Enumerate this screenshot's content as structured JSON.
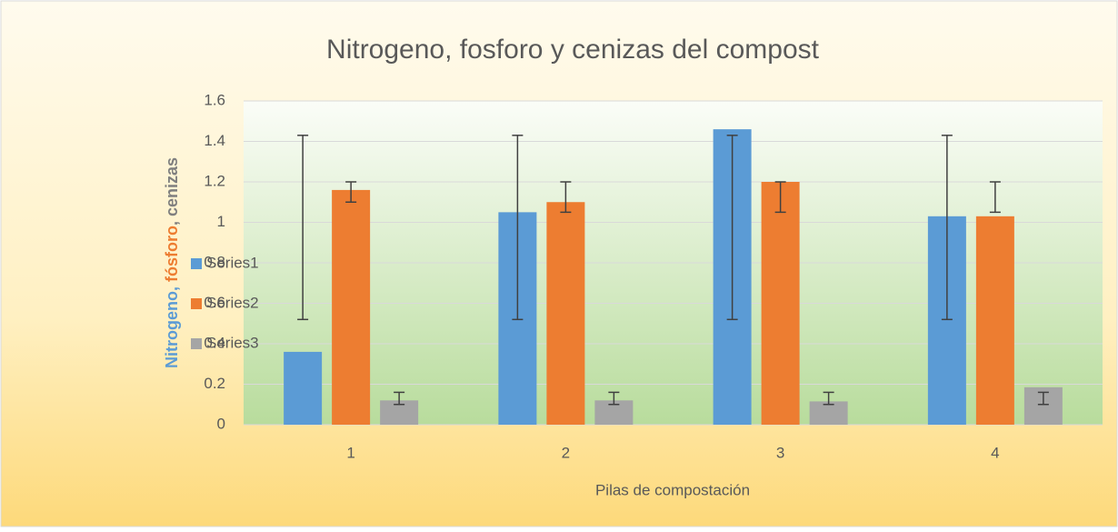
{
  "chart_data": {
    "type": "bar",
    "title": "Nitrogeno, fosforo y cenizas del compost",
    "xlabel": "Pilas de  compostación",
    "ylabel_parts": [
      {
        "text": "Nitrogeno",
        "color": "#5b9bd5"
      },
      {
        "text": ", ",
        "color": "#5b9bd5"
      },
      {
        "text": "fósforo",
        "color": "#ed7d31"
      },
      {
        "text": ", cenizas",
        "color": "#7f7f7f"
      }
    ],
    "categories": [
      "1",
      "2",
      "3",
      "4"
    ],
    "series": [
      {
        "name": "Series1",
        "color": "#5b9bd5",
        "values": [
          0.36,
          1.05,
          1.46,
          1.03
        ],
        "error_low": [
          0.52,
          0.52,
          0.52,
          0.52
        ],
        "error_high": [
          1.43,
          1.43,
          1.43,
          1.43
        ]
      },
      {
        "name": "Series2",
        "color": "#ed7d31",
        "values": [
          1.16,
          1.1,
          1.2,
          1.03
        ],
        "error_low": [
          1.1,
          1.05,
          1.05,
          1.05
        ],
        "error_high": [
          1.2,
          1.2,
          1.2,
          1.2
        ]
      },
      {
        "name": "Series3",
        "color": "#a5a5a5",
        "values": [
          0.12,
          0.12,
          0.115,
          0.185
        ],
        "error_low": [
          0.1,
          0.1,
          0.1,
          0.1
        ],
        "error_high": [
          0.16,
          0.16,
          0.16,
          0.16
        ]
      }
    ],
    "ylim": [
      0,
      1.6
    ],
    "yticks": [
      0,
      {
        "value": 0.2,
        "label": "0.2"
      },
      {
        "value": 0.4,
        "label": "0.4"
      },
      {
        "value": 0.6,
        "label": "0.6"
      },
      {
        "value": 0.8,
        "label": "0.8"
      },
      1,
      {
        "value": 1.2,
        "label": "1.2"
      },
      {
        "value": 1.4,
        "label": "1.4"
      },
      {
        "value": 1.6,
        "label": "1.6"
      }
    ],
    "grid": true,
    "legend": "left"
  }
}
